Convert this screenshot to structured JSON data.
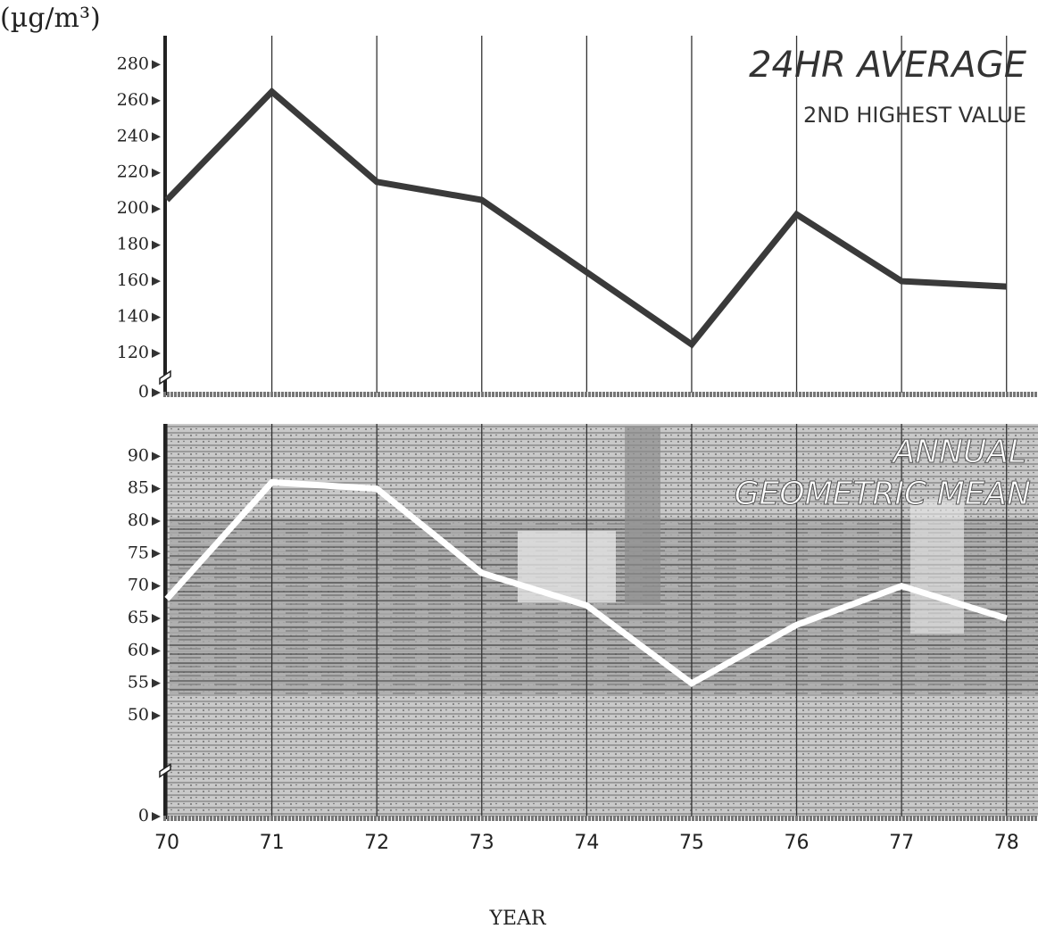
{
  "chart_data": [
    {
      "type": "line",
      "title": "24HR AVERAGE",
      "subtitle": "2ND HIGHEST VALUE",
      "ylabel": "(µg/m³)",
      "x": [
        70,
        71,
        72,
        73,
        74,
        75,
        76,
        77,
        78
      ],
      "values": [
        205,
        265,
        215,
        205,
        165,
        125,
        197,
        160,
        157
      ],
      "color": "#3a3a3a",
      "xlim": [
        70,
        78.3
      ],
      "xticks": [
        71,
        72,
        73,
        74,
        75,
        76,
        77,
        78
      ],
      "ylim": [
        0,
        296
      ],
      "yticks": [
        0,
        120,
        140,
        160,
        180,
        200,
        220,
        240,
        260,
        280
      ],
      "axis_break": true,
      "grid": true
    },
    {
      "type": "line",
      "title": "ANNUAL",
      "subtitle": "GEOMETRIC MEAN",
      "xlabel": "YEAR",
      "x": [
        70,
        71,
        72,
        73,
        74,
        75,
        76,
        77,
        78
      ],
      "values": [
        68,
        86,
        85,
        72,
        67,
        55,
        64,
        70,
        65
      ],
      "color": "#ffffff",
      "xlim": [
        70,
        78.3
      ],
      "xticks": [
        70,
        71,
        72,
        73,
        74,
        75,
        76,
        77,
        78
      ],
      "ylim": [
        0,
        95
      ],
      "yticks": [
        0,
        50,
        55,
        60,
        65,
        70,
        75,
        80,
        85,
        90
      ],
      "axis_break": true,
      "grid": true
    }
  ]
}
